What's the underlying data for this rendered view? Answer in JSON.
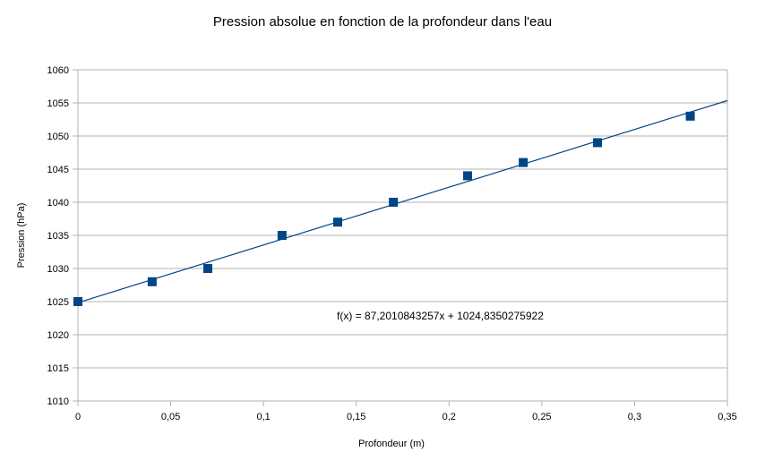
{
  "chart_data": {
    "type": "scatter",
    "title": "Pression absolue en fonction de la profondeur dans l'eau",
    "xlabel": "Profondeur (m)",
    "ylabel": "Pression (hPa)",
    "xlim": [
      0,
      0.35
    ],
    "ylim": [
      1010,
      1060
    ],
    "x_ticks": [
      "0",
      "0,05",
      "0,1",
      "0,15",
      "0,2",
      "0,25",
      "0,3",
      "0,35"
    ],
    "x_tick_values": [
      0,
      0.05,
      0.1,
      0.15,
      0.2,
      0.25,
      0.3,
      0.35
    ],
    "y_ticks": [
      "1010",
      "1015",
      "1020",
      "1025",
      "1030",
      "1035",
      "1040",
      "1045",
      "1050",
      "1055",
      "1060"
    ],
    "y_tick_values": [
      1010,
      1015,
      1020,
      1025,
      1030,
      1035,
      1040,
      1045,
      1050,
      1055,
      1060
    ],
    "grid": "horizontal",
    "legend": "none",
    "series": [
      {
        "x": [
          0,
          0.04,
          0.07,
          0.11,
          0.14,
          0.17,
          0.21,
          0.24,
          0.28,
          0.33
        ],
        "y": [
          1025,
          1028,
          1030,
          1035,
          1037,
          1040,
          1044,
          1046,
          1049,
          1053
        ],
        "marker": "square",
        "color": "#004586"
      }
    ],
    "trendline": {
      "type": "linear",
      "slope": 87.2010843257,
      "intercept": 1024.8350275922,
      "color": "#004586",
      "equation": "f(x) = 87,2010843257x + 1024,8350275922"
    }
  }
}
